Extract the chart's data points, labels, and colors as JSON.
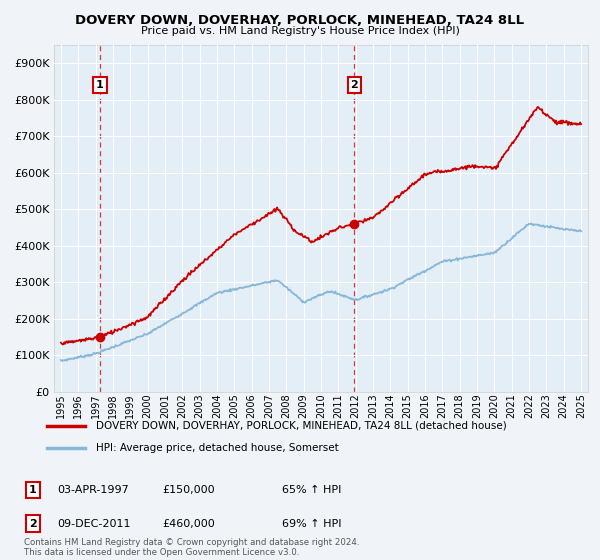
{
  "title": "DOVERY DOWN, DOVERHAY, PORLOCK, MINEHEAD, TA24 8LL",
  "subtitle": "Price paid vs. HM Land Registry's House Price Index (HPI)",
  "bg_color": "#f0f4f8",
  "plot_bg_color": "#e4eef7",
  "grid_color": "#ffffff",
  "ylabel_ticks": [
    "£0",
    "£100K",
    "£200K",
    "£300K",
    "£400K",
    "£500K",
    "£600K",
    "£700K",
    "£800K",
    "£900K"
  ],
  "ytick_values": [
    0,
    100000,
    200000,
    300000,
    400000,
    500000,
    600000,
    700000,
    800000,
    900000
  ],
  "ylim": [
    0,
    950000
  ],
  "xlim_start": 1994.6,
  "xlim_end": 2025.4,
  "xtick_years": [
    1995,
    1996,
    1997,
    1998,
    1999,
    2000,
    2001,
    2002,
    2003,
    2004,
    2005,
    2006,
    2007,
    2008,
    2009,
    2010,
    2011,
    2012,
    2013,
    2014,
    2015,
    2016,
    2017,
    2018,
    2019,
    2020,
    2021,
    2022,
    2023,
    2024,
    2025
  ],
  "sale1_x": 1997.25,
  "sale1_y": 150000,
  "sale1_label": "1",
  "sale1_date": "03-APR-1997",
  "sale1_price": "£150,000",
  "sale1_hpi": "65% ↑ HPI",
  "sale2_x": 2011.92,
  "sale2_y": 460000,
  "sale2_label": "2",
  "sale2_date": "09-DEC-2011",
  "sale2_price": "£460,000",
  "sale2_hpi": "69% ↑ HPI",
  "red_line_color": "#cc0000",
  "blue_line_color": "#88b8d8",
  "dashed_vline_color": "#cc0000",
  "legend_label_red": "DOVERY DOWN, DOVERHAY, PORLOCK, MINEHEAD, TA24 8LL (detached house)",
  "legend_label_blue": "HPI: Average price, detached house, Somerset",
  "footer": "Contains HM Land Registry data © Crown copyright and database right 2024.\nThis data is licensed under the Open Government Licence v3.0."
}
